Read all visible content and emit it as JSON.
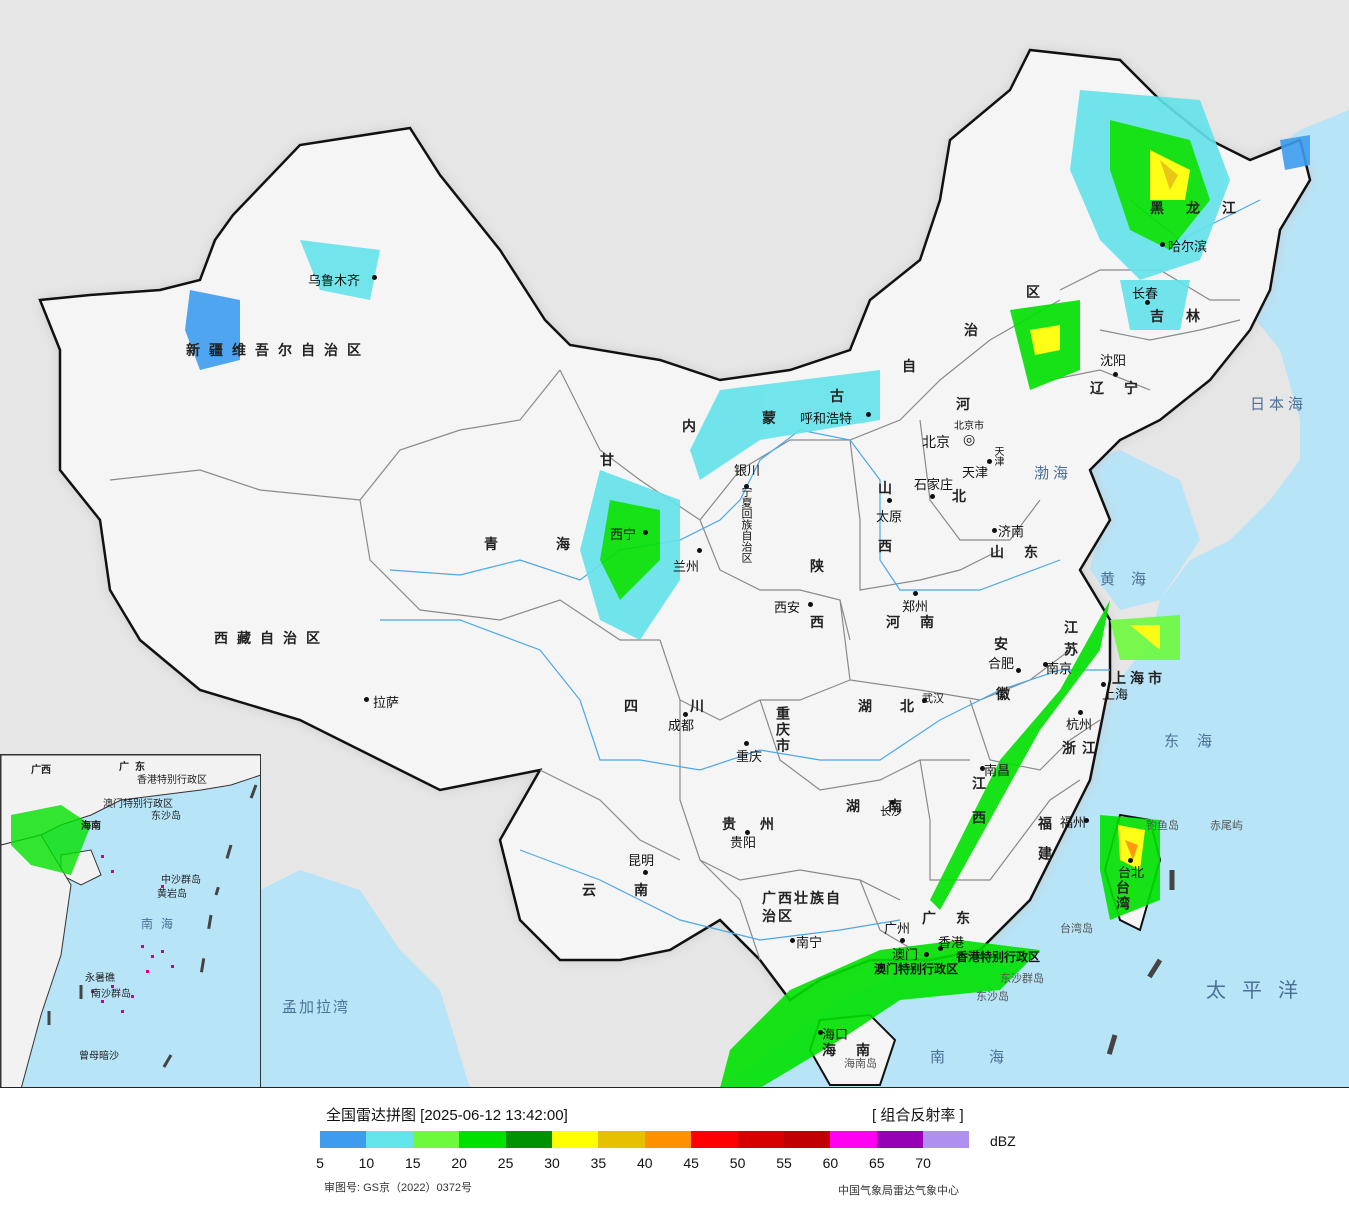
{
  "colors": {
    "sea": "#b8e4f8",
    "land_outside": "#e6e6e6",
    "land_china": "#f6f6f6",
    "border": "#111111",
    "province_border": "#888888",
    "river": "#4aa8e8"
  },
  "provinces": [
    {
      "name": "新疆维吾尔自治区"
    },
    {
      "name": "西藏自治区"
    },
    {
      "name": "青海"
    },
    {
      "name": "甘"
    },
    {
      "name": "内"
    },
    {
      "name": "蒙"
    },
    {
      "name": "古"
    },
    {
      "name": "自"
    },
    {
      "name": "治"
    },
    {
      "name": "区"
    },
    {
      "name": "黑龙江"
    },
    {
      "name": "吉林"
    },
    {
      "name": "辽宁"
    },
    {
      "name": "河"
    },
    {
      "name": "北"
    },
    {
      "name": "山"
    },
    {
      "name": "西"
    },
    {
      "name": "山东"
    },
    {
      "name": "河南"
    },
    {
      "name": "陕"
    },
    {
      "name": "西"
    },
    {
      "name": "宁夏回族自治区"
    },
    {
      "name": "四川"
    },
    {
      "name": "重庆市"
    },
    {
      "name": "湖北"
    },
    {
      "name": "湖南"
    },
    {
      "name": "安"
    },
    {
      "name": "徽"
    },
    {
      "name": "江苏"
    },
    {
      "name": "上海市"
    },
    {
      "name": "浙江"
    },
    {
      "name": "江西"
    },
    {
      "name": "福建"
    },
    {
      "name": "贵州"
    },
    {
      "name": "云南"
    },
    {
      "name": "广西壮族自治区"
    },
    {
      "name": "广东"
    },
    {
      "name": "香港特别行政区"
    },
    {
      "name": "澳门特别行政区"
    },
    {
      "name": "海南"
    },
    {
      "name": "台湾"
    },
    {
      "name": "北京"
    },
    {
      "name": "天津"
    }
  ],
  "cities": [
    {
      "name": "乌鲁木齐"
    },
    {
      "name": "拉萨"
    },
    {
      "name": "西宁"
    },
    {
      "name": "兰州"
    },
    {
      "name": "银川"
    },
    {
      "name": "呼和浩特"
    },
    {
      "name": "北京市"
    },
    {
      "name": "天津"
    },
    {
      "name": "石家庄"
    },
    {
      "name": "太原"
    },
    {
      "name": "济南"
    },
    {
      "name": "郑州"
    },
    {
      "name": "西安"
    },
    {
      "name": "成都"
    },
    {
      "name": "重庆"
    },
    {
      "name": "武汉"
    },
    {
      "name": "合肥"
    },
    {
      "name": "南京"
    },
    {
      "name": "上海"
    },
    {
      "name": "杭州"
    },
    {
      "name": "南昌"
    },
    {
      "name": "长沙"
    },
    {
      "name": "福州"
    },
    {
      "name": "贵阳"
    },
    {
      "name": "昆明"
    },
    {
      "name": "南宁"
    },
    {
      "name": "广州"
    },
    {
      "name": "香港"
    },
    {
      "name": "澳门"
    },
    {
      "name": "海口"
    },
    {
      "name": "台北"
    },
    {
      "name": "哈尔滨"
    },
    {
      "name": "长春"
    },
    {
      "name": "沈阳"
    }
  ],
  "seas": [
    {
      "name": "日本海"
    },
    {
      "name": "渤海"
    },
    {
      "name": "黄海"
    },
    {
      "name": "东海"
    },
    {
      "name": "太平洋"
    },
    {
      "name": "南海"
    },
    {
      "name": "孟加拉湾"
    }
  ],
  "islands": [
    {
      "name": "钓鱼岛"
    },
    {
      "name": "赤尾屿"
    },
    {
      "name": "台湾岛"
    },
    {
      "name": "东沙群岛"
    },
    {
      "name": "东沙岛"
    },
    {
      "name": "海南岛"
    }
  ],
  "inset": {
    "labels": [
      "广东",
      "香港特别行政区",
      "澳门特别行政区",
      "东沙岛",
      "广西",
      "海南",
      "中沙群岛",
      "黄岩岛",
      "南沙群岛",
      "永暑礁",
      "曾母暗沙"
    ],
    "sea": "南海"
  },
  "legend": {
    "title": "全国雷达拼图 [2025-06-12 13:42:00]",
    "product": "[ 组合反射率 ]",
    "unit": "dBZ",
    "colors": [
      "#3d9cee",
      "#63e3ea",
      "#6dfa3d",
      "#00e100",
      "#009100",
      "#ffff00",
      "#e7c000",
      "#ff9000",
      "#ff0000",
      "#d60000",
      "#c00000",
      "#ff00f0",
      "#9600b4",
      "#ad90f0"
    ],
    "ticks": [
      "5",
      "10",
      "15",
      "20",
      "25",
      "30",
      "35",
      "40",
      "45",
      "50",
      "55",
      "60",
      "65",
      "70"
    ],
    "review_no": "审图号: GS京（2022）0372号",
    "agency": "中国气象局雷达气象中心"
  }
}
